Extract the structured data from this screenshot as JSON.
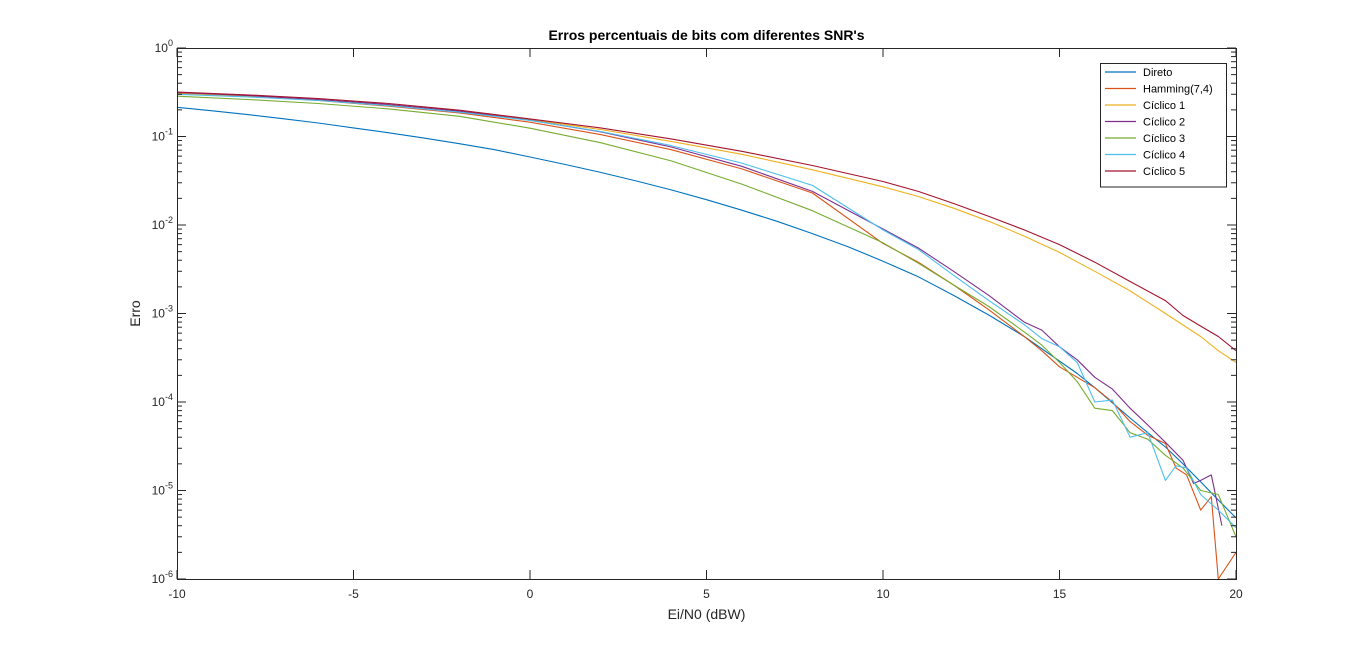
{
  "chart_data": {
    "type": "line",
    "title": "Erros percentuais de bits com diferentes SNR's",
    "xlabel": "Ei/N0 (dBW)",
    "ylabel": "Erro",
    "xlim": [
      -10,
      20
    ],
    "ylim": [
      1e-06,
      1
    ],
    "yscale": "log",
    "xticks": [
      -10,
      -5,
      0,
      5,
      10,
      15,
      20
    ],
    "yticks": [
      {
        "exp": "-6",
        "value": 1e-06
      },
      {
        "exp": "-5",
        "value": 1e-05
      },
      {
        "exp": "-4",
        "value": 0.0001
      },
      {
        "exp": "-3",
        "value": 0.001
      },
      {
        "exp": "-2",
        "value": 0.01
      },
      {
        "exp": "-1",
        "value": 0.1
      },
      {
        "exp": "0",
        "value": 1
      }
    ],
    "ytick_base": "10",
    "grid": false,
    "legend_position": "top-right",
    "series": [
      {
        "name": "Direto",
        "color": "#0072BD",
        "x": [
          -10,
          -9,
          -8,
          -7,
          -6,
          -5,
          -4,
          -3,
          -2,
          -1,
          0,
          1,
          2,
          3,
          4,
          5,
          6,
          7,
          8,
          9,
          10,
          11,
          12,
          13,
          14,
          15,
          15.5,
          16,
          16.5,
          17,
          17.5,
          18,
          18.5,
          19,
          19.5,
          20
        ],
        "y": [
          0.214,
          0.195,
          0.177,
          0.159,
          0.142,
          0.125,
          0.11,
          0.096,
          0.083,
          0.071,
          0.0587,
          0.0483,
          0.0393,
          0.0315,
          0.0249,
          0.0193,
          0.0147,
          0.011,
          0.008,
          0.0057,
          0.0039,
          0.0026,
          0.0016,
          0.00096,
          0.00055,
          0.00029,
          0.00021,
          0.000145,
          9.8e-05,
          6.6e-05,
          4.5e-05,
          3.1e-05,
          2e-05,
          1.25e-05,
          7.8e-06,
          4.9e-06
        ]
      },
      {
        "name": "Hamming(7,4)",
        "color": "#D95319",
        "x": [
          -10,
          -8,
          -6,
          -4,
          -2,
          0,
          2,
          4,
          6,
          8,
          10,
          11,
          12,
          13,
          14,
          14.5,
          15,
          15.5,
          16,
          16.5,
          17,
          17.5,
          18,
          18.3,
          18.6,
          19,
          19.3,
          19.5,
          20
        ],
        "y": [
          0.31,
          0.285,
          0.255,
          0.22,
          0.185,
          0.145,
          0.105,
          0.071,
          0.043,
          0.023,
          0.0062,
          0.0038,
          0.0021,
          0.0011,
          0.00055,
          0.00038,
          0.00025,
          0.00019,
          0.000145,
          0.0001,
          6e-05,
          4.2e-05,
          3.4e-05,
          1.8e-05,
          1.5e-05,
          6e-06,
          8.5e-06,
          1e-06,
          2e-06
        ]
      },
      {
        "name": "Cíclico 1",
        "color": "#EDB120",
        "x": [
          -10,
          -8,
          -6,
          -4,
          -2,
          0,
          2,
          4,
          6,
          8,
          10,
          11,
          12,
          13,
          14,
          15,
          16,
          17,
          18,
          19,
          19.5,
          20
        ],
        "y": [
          0.305,
          0.285,
          0.258,
          0.227,
          0.195,
          0.155,
          0.12,
          0.088,
          0.063,
          0.042,
          0.027,
          0.021,
          0.0155,
          0.011,
          0.0075,
          0.0049,
          0.003,
          0.0018,
          0.001,
          0.00055,
          0.00038,
          0.00028
        ]
      },
      {
        "name": "Cíclico 2",
        "color": "#7E2F8E",
        "x": [
          -10,
          -8,
          -6,
          -4,
          -2,
          0,
          2,
          4,
          6,
          8,
          10,
          11,
          12,
          13,
          14,
          14.5,
          15,
          15.5,
          16,
          16.5,
          17,
          17.5,
          18,
          18.5,
          18.8,
          19,
          19.3,
          19.6
        ],
        "y": [
          0.315,
          0.29,
          0.262,
          0.23,
          0.193,
          0.153,
          0.113,
          0.076,
          0.046,
          0.024,
          0.009,
          0.0055,
          0.003,
          0.0016,
          0.0008,
          0.00065,
          0.00042,
          0.0003,
          0.00019,
          0.00014,
          8.5e-05,
          5.5e-05,
          3.5e-05,
          2.2e-05,
          1.2e-05,
          1.3e-05,
          1.5e-05,
          4e-06
        ]
      },
      {
        "name": "Cíclico 3",
        "color": "#77AC30",
        "x": [
          -10,
          -8,
          -6,
          -4,
          -2,
          0,
          2,
          4,
          6,
          8,
          10,
          11,
          12,
          13,
          14,
          14.5,
          15,
          15.5,
          16,
          16.5,
          17,
          17.5,
          18,
          18.5,
          19,
          19.5,
          20
        ],
        "y": [
          0.285,
          0.262,
          0.236,
          0.205,
          0.169,
          0.124,
          0.085,
          0.053,
          0.029,
          0.0145,
          0.0063,
          0.0037,
          0.0021,
          0.0012,
          0.00062,
          0.00044,
          0.00028,
          0.00017,
          8.5e-05,
          8e-05,
          4.5e-05,
          3.8e-05,
          2.5e-05,
          1.8e-05,
          1e-05,
          9e-06,
          3e-06
        ]
      },
      {
        "name": "Cíclico 4",
        "color": "#4DBEEE",
        "x": [
          -10,
          -8,
          -6,
          -4,
          -2,
          0,
          2,
          4,
          6,
          8,
          10,
          11,
          12,
          13,
          14,
          14.5,
          15,
          15.5,
          16,
          16.5,
          17,
          17.5,
          18,
          18.3,
          18.6,
          19,
          19.5,
          20
        ],
        "y": [
          0.3,
          0.28,
          0.255,
          0.223,
          0.188,
          0.152,
          0.114,
          0.079,
          0.05,
          0.028,
          0.0088,
          0.0053,
          0.0027,
          0.0014,
          0.00075,
          0.00052,
          0.00042,
          0.00028,
          0.0001,
          0.000105,
          4e-05,
          4.5e-05,
          1.3e-05,
          1.9e-05,
          1.8e-05,
          9e-06,
          6e-06,
          3.8e-06
        ]
      },
      {
        "name": "Cíclico 5",
        "color": "#A2142F",
        "x": [
          -10,
          -8,
          -6,
          -4,
          -2,
          0,
          2,
          4,
          6,
          8,
          10,
          11,
          12,
          13,
          14,
          15,
          16,
          17,
          18,
          18.5,
          19,
          19.5,
          20
        ],
        "y": [
          0.318,
          0.295,
          0.268,
          0.236,
          0.198,
          0.158,
          0.125,
          0.094,
          0.068,
          0.047,
          0.031,
          0.024,
          0.0175,
          0.0125,
          0.0088,
          0.006,
          0.0038,
          0.0023,
          0.0014,
          0.00095,
          0.00072,
          0.00055,
          0.00038
        ]
      }
    ]
  }
}
